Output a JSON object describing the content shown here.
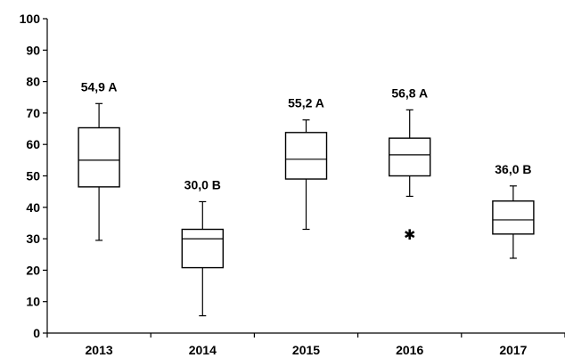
{
  "chart_data": {
    "type": "boxplot",
    "title": "",
    "xlabel": "",
    "ylabel": "",
    "ylim": [
      0,
      100
    ],
    "yticks": [
      0,
      10,
      20,
      30,
      40,
      50,
      60,
      70,
      80,
      90,
      100
    ],
    "grid": false,
    "categories": [
      "2013",
      "2014",
      "2015",
      "2016",
      "2017"
    ],
    "boxes": [
      {
        "category": "2013",
        "min": 29.5,
        "q1": 46.5,
        "median": 55.0,
        "q3": 65.3,
        "max": 73.0,
        "annotation": "54,9 A"
      },
      {
        "category": "2014",
        "min": 5.5,
        "q1": 20.8,
        "median": 30.0,
        "q3": 33.0,
        "max": 41.8,
        "annotation": "30,0 B"
      },
      {
        "category": "2015",
        "min": 33.0,
        "q1": 49.0,
        "median": 55.3,
        "q3": 63.8,
        "max": 67.8,
        "annotation": "55,2 A"
      },
      {
        "category": "2016",
        "min": 43.5,
        "q1": 50.0,
        "median": 56.7,
        "q3": 62.0,
        "max": 71.0,
        "annotation": "56,8 A",
        "outliers": [
          31.5
        ]
      },
      {
        "category": "2017",
        "min": 23.8,
        "q1": 31.5,
        "median": 36.0,
        "q3": 42.0,
        "max": 46.8,
        "annotation": "36,0 B"
      }
    ],
    "outlier_symbol": "✱"
  }
}
